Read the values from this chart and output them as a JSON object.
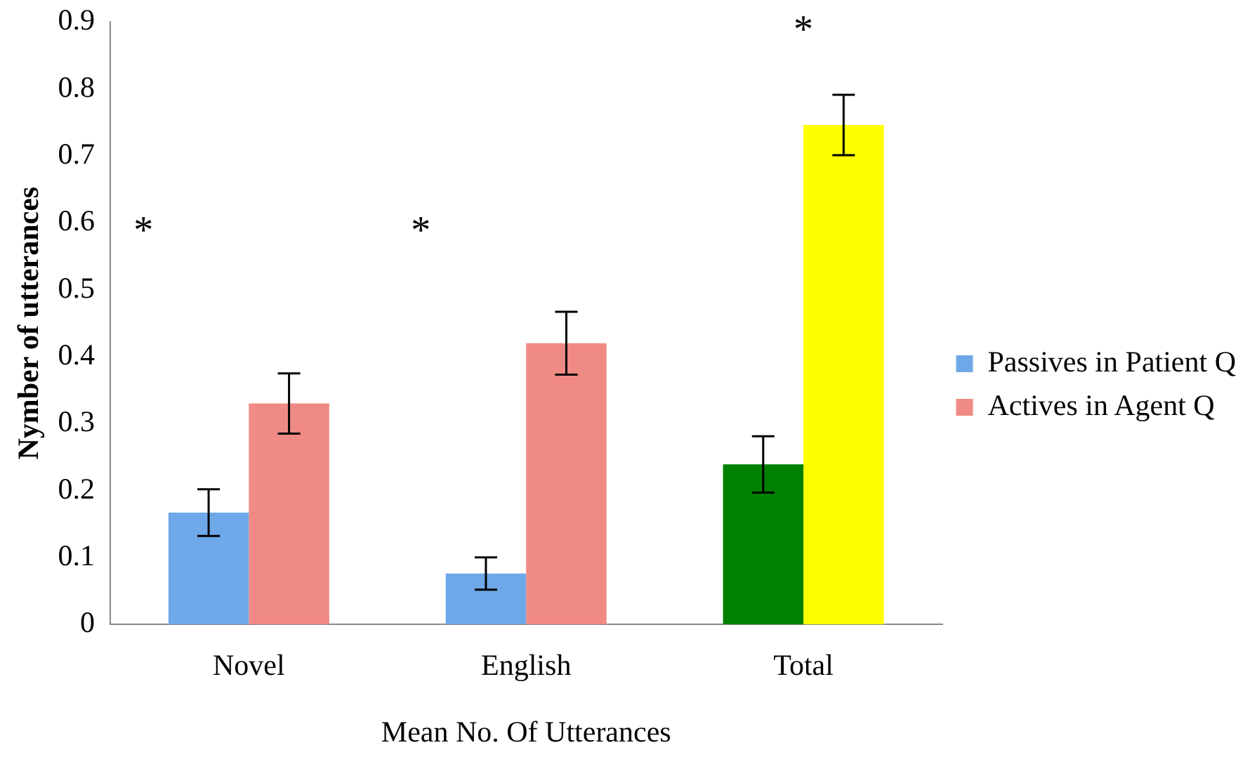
{
  "chart_data": {
    "type": "bar",
    "ylabel": "Nymber of utterances",
    "xlabel": "Mean No. Of Utterances",
    "categories": [
      "Novel",
      "English",
      "Total"
    ],
    "series": [
      {
        "name": "Passives in Patient Q",
        "color": "#6fa8e8",
        "colors": [
          "#6fa8e8",
          "#6fa8e8",
          "#008000"
        ],
        "values": [
          0.167,
          0.076,
          0.239
        ],
        "errors": [
          0.035,
          0.024,
          0.042
        ]
      },
      {
        "name": "Actives in Agent Q",
        "color": "#f08a84",
        "colors": [
          "#f08a84",
          "#f08a84",
          "#ffff00"
        ],
        "values": [
          0.33,
          0.42,
          0.746
        ],
        "errors": [
          0.045,
          0.047,
          0.045
        ]
      }
    ],
    "ylim": [
      0,
      0.9
    ],
    "yticks": [
      0,
      0.1,
      0.2,
      0.3,
      0.4,
      0.5,
      0.6,
      0.7,
      0.8,
      0.9
    ],
    "grid": false,
    "legend": "right",
    "annotations": [
      "*",
      "*",
      "*"
    ]
  }
}
